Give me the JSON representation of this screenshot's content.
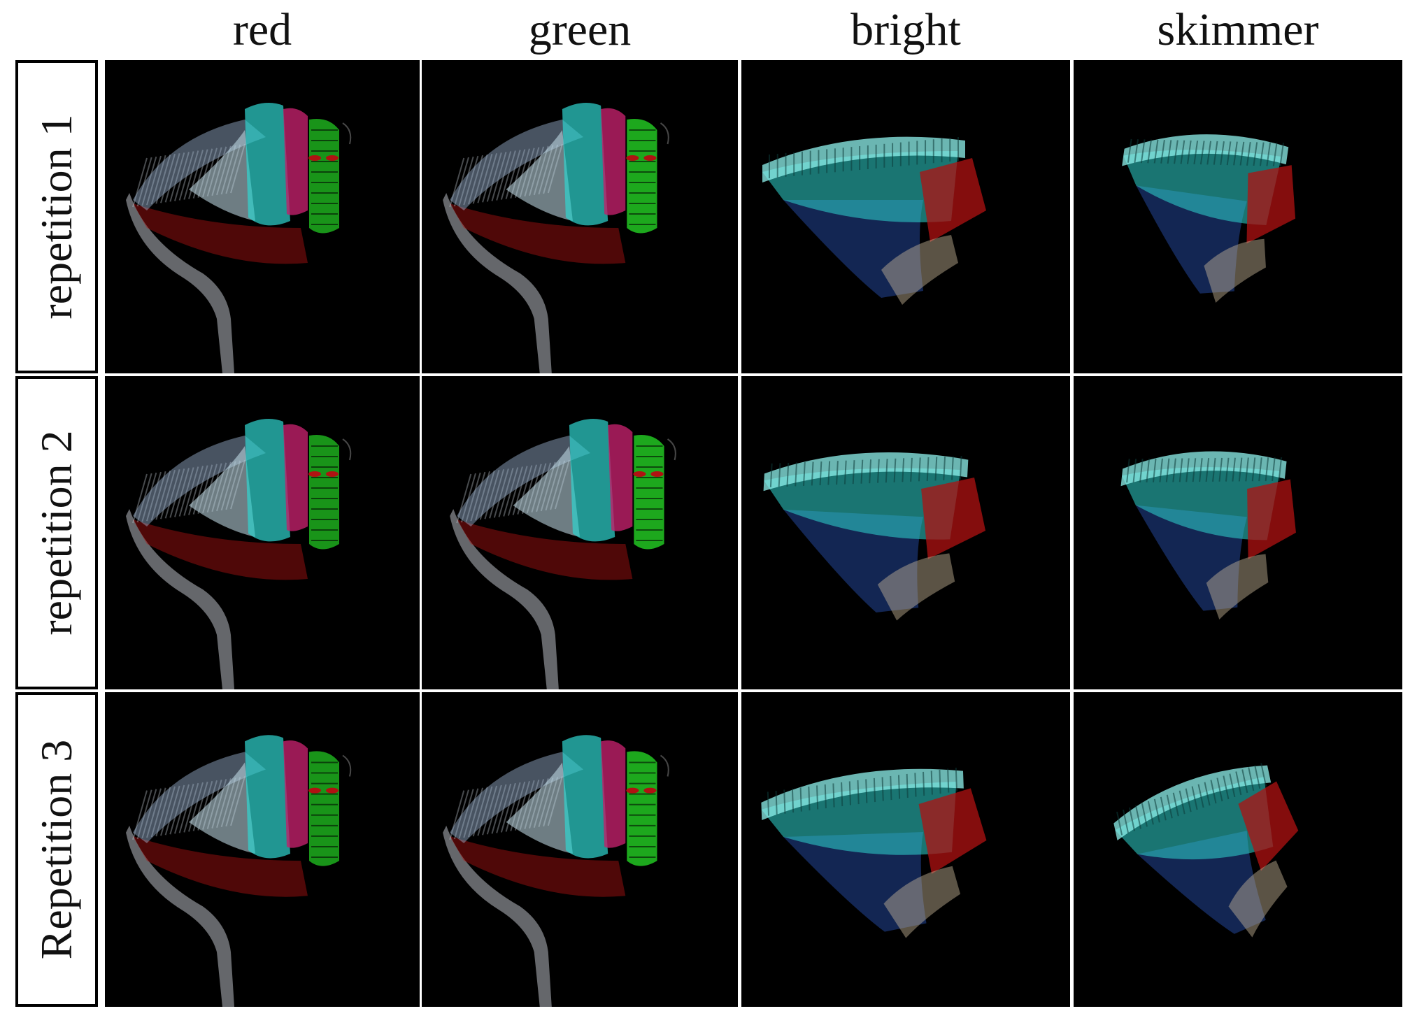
{
  "columns": [
    "red",
    "green",
    "bright",
    "skimmer"
  ],
  "rows": [
    "repetition 1",
    "repetition 2",
    "Repetition 3"
  ],
  "palette": {
    "background": "#000000",
    "cyan": "#2fd6d0",
    "light_cyan": "#8ff3ee",
    "grey": "#b8bcc2",
    "red": "#b01212",
    "magenta": "#c0206a",
    "green": "#22c522",
    "blue": "#1f3f8a"
  },
  "figure_kinds": {
    "red": "face",
    "green": "face",
    "bright": "fan",
    "skimmer": "fan"
  }
}
